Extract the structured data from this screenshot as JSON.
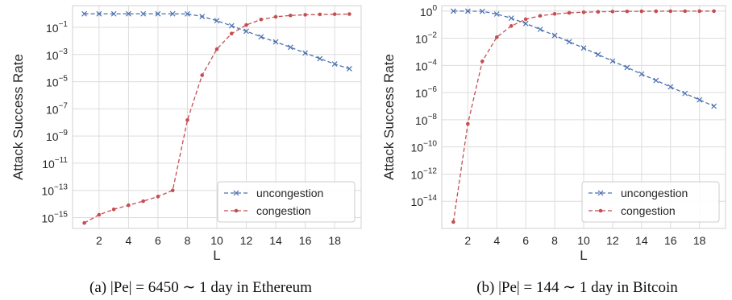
{
  "chart_data": [
    {
      "type": "line",
      "caption": "(a) |Pe| = 6450 ∼ 1 day in Ethereum",
      "xlabel": "L",
      "ylabel": "Attack Success Rate",
      "yscale": "log",
      "x": [
        1,
        2,
        3,
        4,
        5,
        6,
        7,
        8,
        9,
        10,
        11,
        12,
        13,
        14,
        15,
        16,
        17,
        18,
        19
      ],
      "xticks": [
        2,
        4,
        6,
        8,
        10,
        12,
        14,
        16,
        18
      ],
      "yticks": [
        "10^-1",
        "10^-3",
        "10^-5",
        "10^-7",
        "10^-9",
        "10^-11",
        "10^-13",
        "10^-15"
      ],
      "xlim": [
        0.2,
        19.8
      ],
      "ylim_log10": [
        -15.8,
        0.6
      ],
      "grid": true,
      "legend_position": "lower-right",
      "series": [
        {
          "name": "uncongestion",
          "color": "#4c72b0",
          "marker": "x",
          "dash": "dashed",
          "values": [
            0.999,
            0.999,
            0.999,
            0.999,
            0.999,
            0.999,
            0.998,
            0.98,
            0.63,
            0.31,
            0.13,
            0.052,
            0.02,
            0.0085,
            0.0034,
            0.0013,
            0.0005,
            0.0002,
            9e-05
          ]
        },
        {
          "name": "congestion",
          "color": "#c44e52",
          "marker": "dot",
          "dash": "dashed",
          "values": [
            4e-16,
            1.6e-15,
            4e-15,
            8e-15,
            1.6e-14,
            3.5e-14,
            1e-13,
            1.5e-08,
            3e-05,
            0.0025,
            0.035,
            0.15,
            0.38,
            0.6,
            0.75,
            0.84,
            0.9,
            0.93,
            0.95
          ]
        }
      ]
    },
    {
      "type": "line",
      "caption": "(b) |Pe| = 144 ∼ 1 day in Bitcoin",
      "xlabel": "L",
      "ylabel": "Attack Success Rate",
      "yscale": "log",
      "x": [
        1,
        2,
        3,
        4,
        5,
        6,
        7,
        8,
        9,
        10,
        11,
        12,
        13,
        14,
        15,
        16,
        17,
        18,
        19
      ],
      "xticks": [
        2,
        4,
        6,
        8,
        10,
        12,
        14,
        16,
        18
      ],
      "yticks": [
        "10^0",
        "10^-2",
        "10^-4",
        "10^-6",
        "10^-8",
        "10^-10",
        "10^-12",
        "10^-14"
      ],
      "xlim": [
        0.2,
        19.8
      ],
      "ylim_log10": [
        -16.0,
        0.4
      ],
      "grid": true,
      "legend_position": "lower-right",
      "series": [
        {
          "name": "uncongestion",
          "color": "#4c72b0",
          "marker": "x",
          "dash": "dashed",
          "values": [
            0.999,
            0.99,
            0.96,
            0.6,
            0.3,
            0.12,
            0.045,
            0.016,
            0.0055,
            0.0019,
            0.00063,
            0.00021,
            7e-05,
            2.3e-05,
            7.8e-06,
            2.6e-06,
            8.7e-07,
            2.9e-07,
            1e-07
          ]
        },
        {
          "name": "congestion",
          "color": "#c44e52",
          "marker": "dot",
          "dash": "dashed",
          "values": [
            3e-16,
            5e-09,
            0.0002,
            0.012,
            0.08,
            0.25,
            0.45,
            0.62,
            0.74,
            0.82,
            0.88,
            0.92,
            0.95,
            0.96,
            0.97,
            0.98,
            0.985,
            0.99,
            0.99
          ]
        }
      ]
    }
  ]
}
